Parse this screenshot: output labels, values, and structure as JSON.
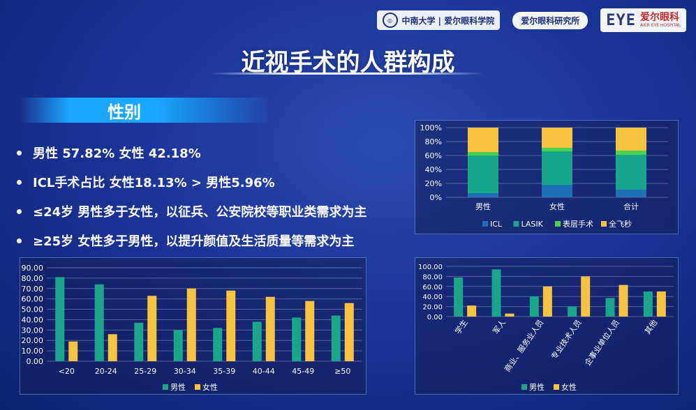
{
  "header": {
    "logo_csu": "中南大学 | 爱尔眼科学院",
    "institute": "爱尔眼科研究所",
    "eye_mark": "EYE",
    "eye_cn": "爱尔眼科",
    "eye_en": "AIER EYE HOSPITAL"
  },
  "title": "近视手术的人群构成",
  "section": "性别",
  "bullets": [
    "男性 57.82% 女性 42.18%",
    "ICL手术占比  女性18.13% > 男性5.96%",
    "≤24岁 男性多于女性，以征兵、公安院校等职业类需求为主",
    "≥25岁 女性多于男性，以提升颜值及生活质量等需求为主"
  ],
  "colors": {
    "green": "#1aa68a",
    "yellow": "#f8c440",
    "icl": "#1e6fb3",
    "lasik": "#17a58c",
    "surface": "#4bd14f",
    "femto": "#f8c440"
  },
  "chart_data": [
    {
      "type": "bar",
      "stacked": true,
      "categories": [
        "男性",
        "女性",
        "合计"
      ],
      "series": [
        {
          "name": "ICL",
          "values": [
            6,
            18,
            11
          ]
        },
        {
          "name": "LASIK",
          "values": [
            54,
            48,
            50
          ]
        },
        {
          "name": "表层手术",
          "values": [
            5,
            5,
            6
          ]
        },
        {
          "name": "全飞秒",
          "values": [
            35,
            29,
            33
          ]
        }
      ],
      "ylim": [
        0,
        100
      ],
      "yticks": [
        "0%",
        "20%",
        "40%",
        "60%",
        "80%",
        "100%"
      ],
      "legend": "bottom",
      "grid": true
    },
    {
      "type": "bar",
      "categories": [
        "<20",
        "20-24",
        "25-29",
        "30-34",
        "35-39",
        "40-44",
        "45-49",
        "≥50"
      ],
      "series": [
        {
          "name": "男性",
          "values": [
            81,
            74,
            37,
            30,
            32,
            38,
            42,
            44
          ]
        },
        {
          "name": "女性",
          "values": [
            19,
            26,
            63,
            70,
            68,
            62,
            58,
            56
          ]
        }
      ],
      "ylim": [
        0,
        90
      ],
      "yticks": [
        "0.00",
        "10.00",
        "20.00",
        "30.00",
        "40.00",
        "50.00",
        "60.00",
        "70.00",
        "80.00",
        "90.00"
      ],
      "legend": "bottom",
      "grid": true
    },
    {
      "type": "bar",
      "categories": [
        "学生",
        "军人",
        "商业、服务业人员",
        "专业技术人员",
        "企事业单位人员",
        "其他"
      ],
      "series": [
        {
          "name": "男性",
          "values": [
            78,
            94,
            40,
            20,
            37,
            50
          ]
        },
        {
          "name": "女性",
          "values": [
            22,
            6,
            60,
            80,
            63,
            50
          ]
        }
      ],
      "ylim": [
        0,
        100
      ],
      "yticks": [
        "0.00",
        "20.00",
        "40.00",
        "60.00",
        "80.00",
        "100.00"
      ],
      "legend": "bottom",
      "grid": true
    }
  ]
}
